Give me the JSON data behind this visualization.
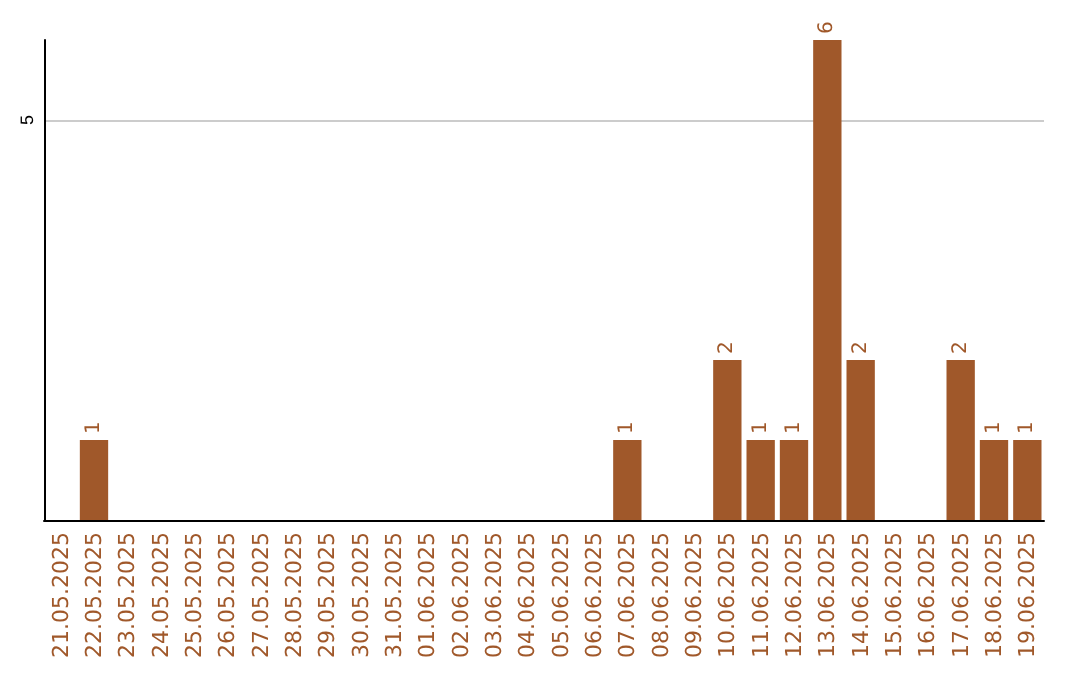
{
  "chart_data": {
    "type": "bar",
    "categories": [
      "21.05.2025",
      "22.05.2025",
      "23.05.2025",
      "24.05.2025",
      "25.05.2025",
      "26.05.2025",
      "27.05.2025",
      "28.05.2025",
      "29.05.2025",
      "30.05.2025",
      "31.05.2025",
      "01.06.2025",
      "02.06.2025",
      "03.06.2025",
      "04.06.2025",
      "05.06.2025",
      "06.06.2025",
      "07.06.2025",
      "08.06.2025",
      "09.06.2025",
      "10.06.2025",
      "11.06.2025",
      "12.06.2025",
      "13.06.2025",
      "14.06.2025",
      "15.06.2025",
      "16.06.2025",
      "17.06.2025",
      "18.06.2025",
      "19.06.2025"
    ],
    "values": [
      0,
      1,
      0,
      0,
      0,
      0,
      0,
      0,
      0,
      0,
      0,
      0,
      0,
      0,
      0,
      0,
      0,
      1,
      0,
      0,
      2,
      1,
      1,
      6,
      2,
      0,
      0,
      2,
      1,
      1
    ],
    "value_labels": [
      null,
      "1",
      null,
      null,
      null,
      null,
      null,
      null,
      null,
      null,
      null,
      null,
      null,
      null,
      null,
      null,
      null,
      "1",
      null,
      null,
      "2",
      "1",
      "1",
      "6",
      "2",
      null,
      null,
      "2",
      "1",
      "1"
    ],
    "color": "#a0582a",
    "ylim": [
      0,
      6
    ],
    "yticks": [
      5
    ],
    "grid": "y"
  }
}
